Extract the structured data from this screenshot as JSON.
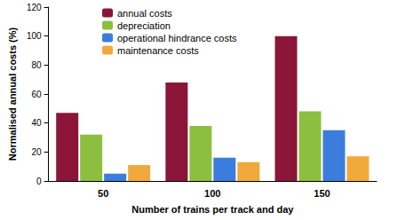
{
  "chart_data": {
    "type": "bar",
    "x_label": "Number of trains per track and day",
    "y_label": "Normalised annual costs (%)",
    "categories": [
      "50",
      "100",
      "150"
    ],
    "series": [
      {
        "name": "annual costs",
        "color": "#8b1538",
        "values": [
          47,
          68,
          100
        ]
      },
      {
        "name": "depreciation",
        "color": "#8cbf3f",
        "values": [
          32,
          38,
          48
        ]
      },
      {
        "name": "operational hindrance costs",
        "color": "#3b7ddd",
        "values": [
          5,
          16,
          35
        ]
      },
      {
        "name": "maintenance costs",
        "color": "#f2a93b",
        "values": [
          11,
          13,
          17
        ]
      }
    ],
    "ylim": [
      0,
      120
    ],
    "yticks": [
      0,
      20,
      40,
      60,
      80,
      100,
      120
    ],
    "grid": false,
    "legend": "top-left"
  }
}
